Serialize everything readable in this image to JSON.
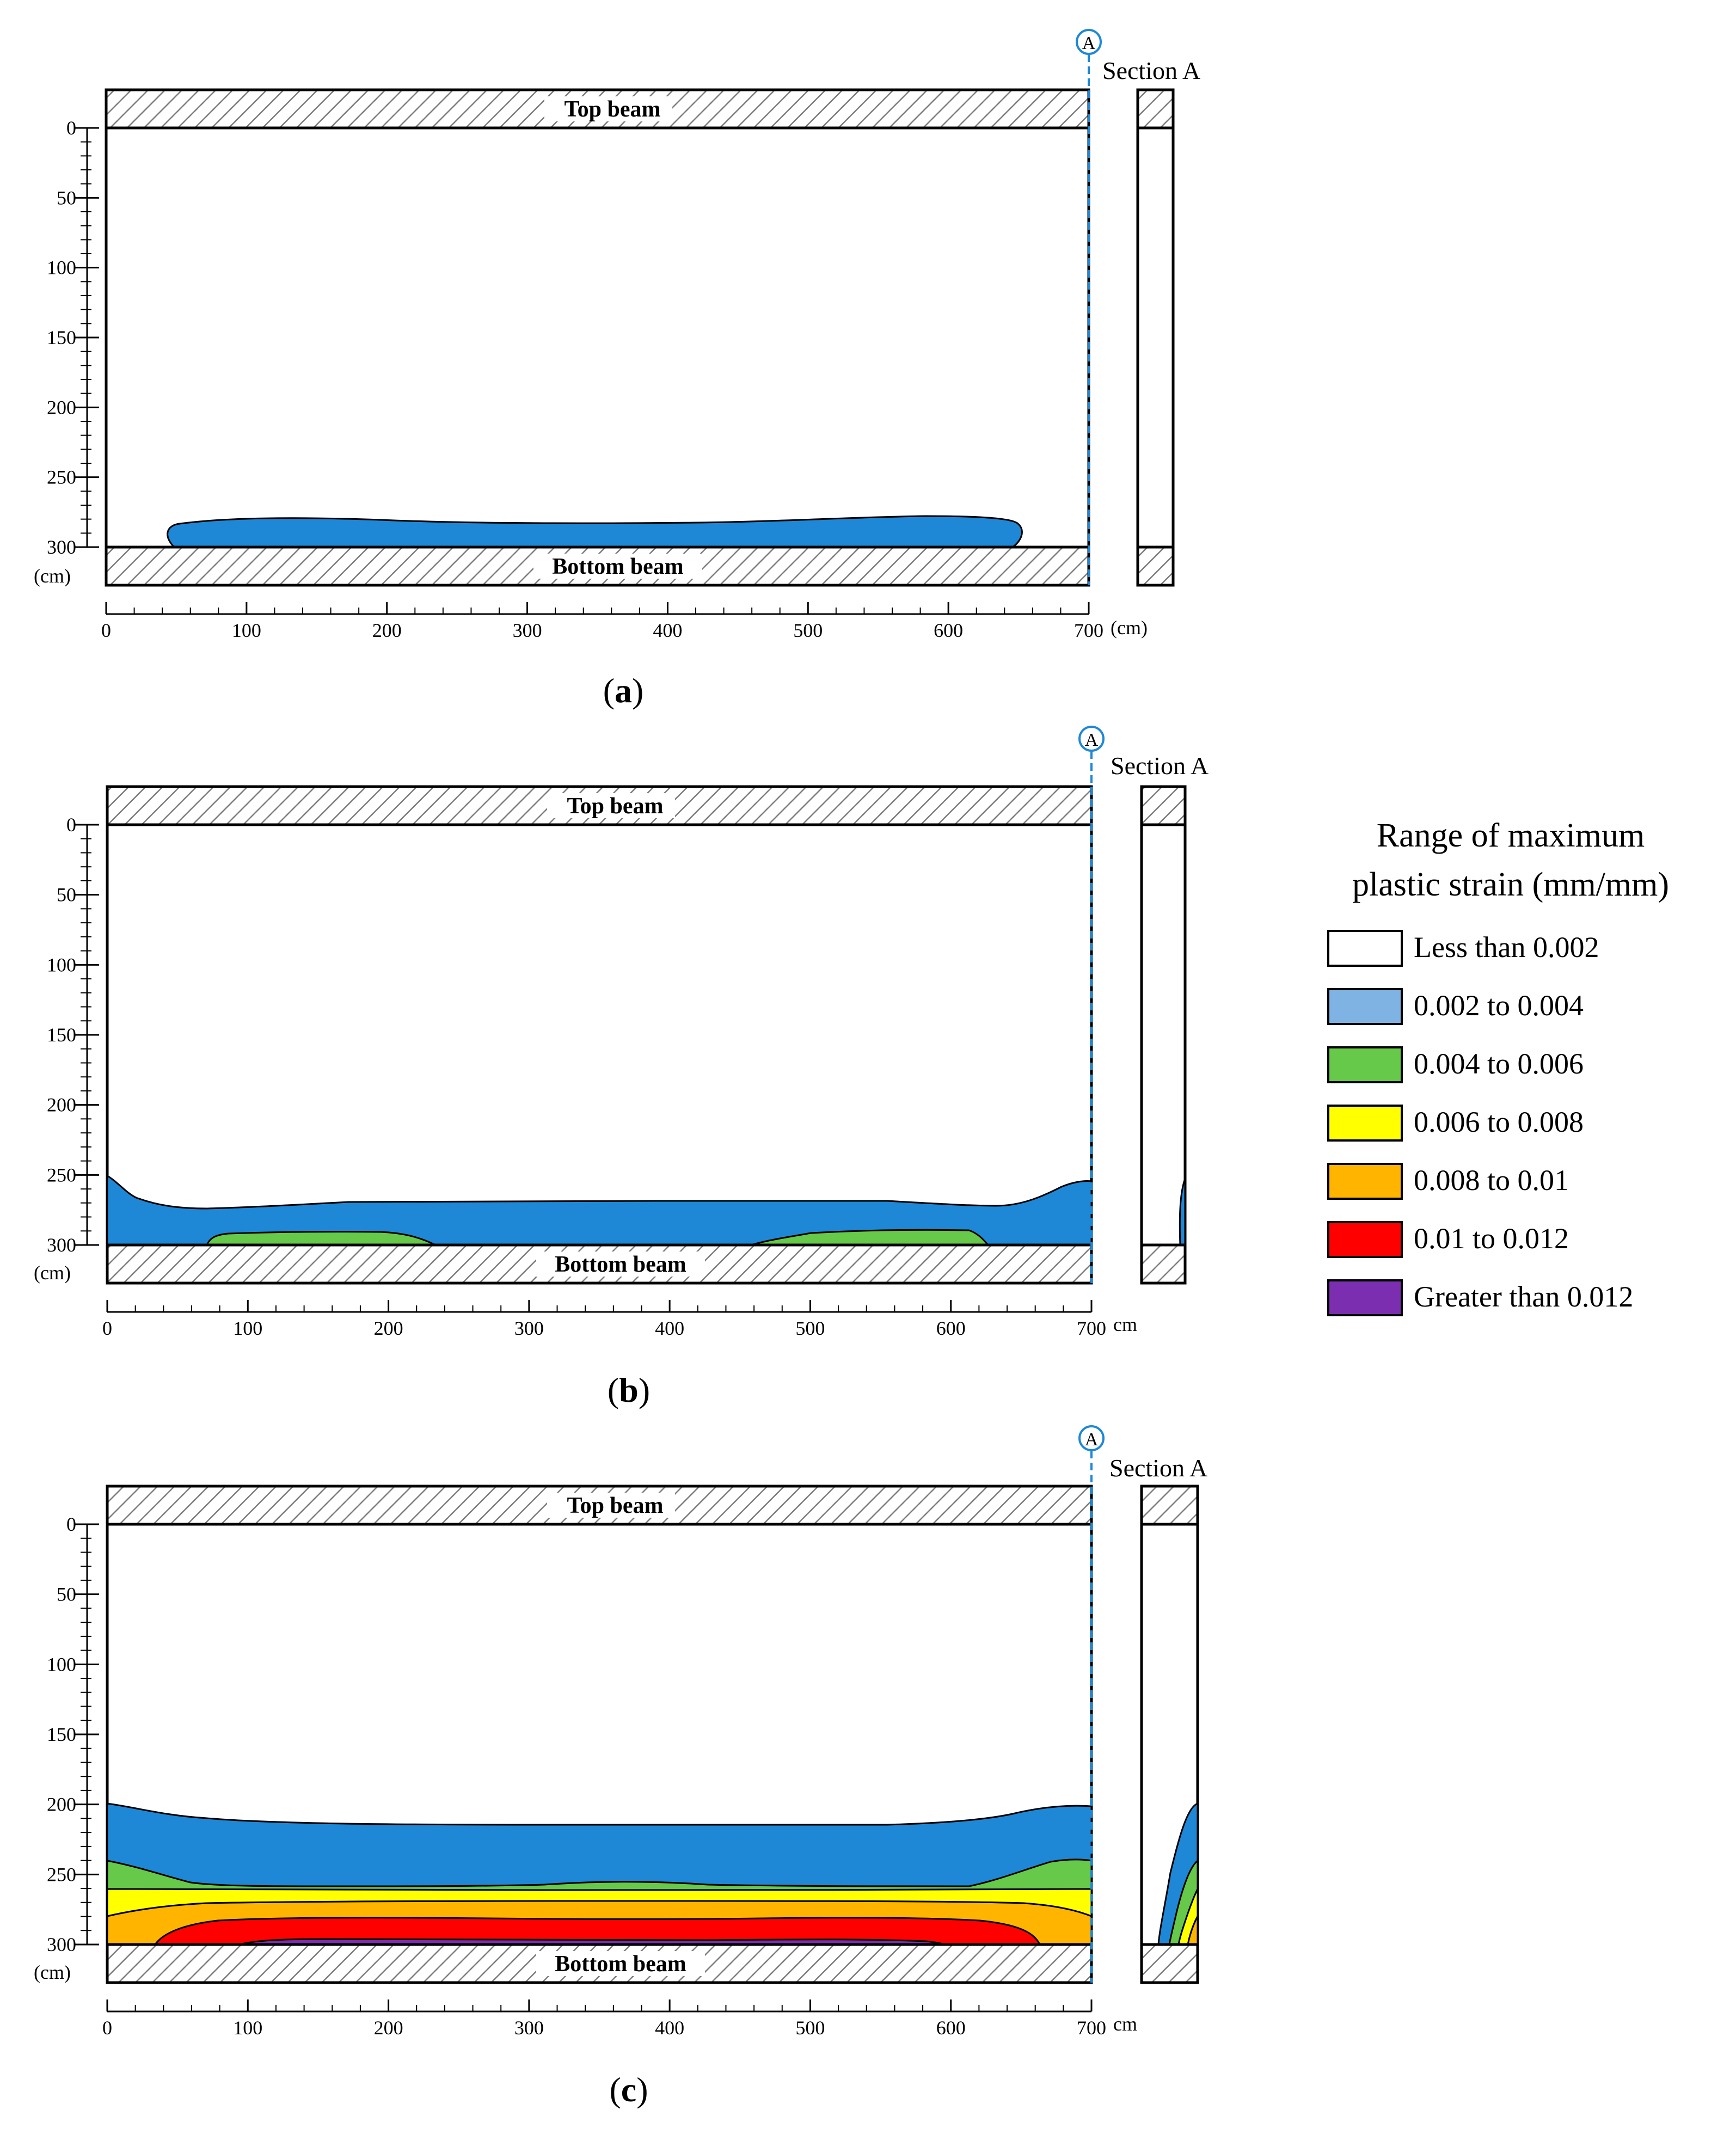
{
  "figure": {
    "panels": [
      {
        "id": "a",
        "caption_letter": "a",
        "top_beam_label": "Top beam",
        "bottom_beam_label": "Bottom beam",
        "section_marker": "A",
        "section_label": "Section A",
        "y_unit_label": "(cm)",
        "x_unit_label": "(cm)",
        "x_ticks": [
          "0",
          "100",
          "200",
          "300",
          "400",
          "500",
          "600",
          "700"
        ],
        "y_ticks": [
          "0",
          "50",
          "100",
          "150",
          "200",
          "250",
          "300"
        ]
      },
      {
        "id": "b",
        "caption_letter": "b",
        "top_beam_label": "Top beam",
        "bottom_beam_label": "Bottom beam",
        "section_marker": "A",
        "section_label": "Section A",
        "y_unit_label": "(cm)",
        "x_unit_label": "cm",
        "x_ticks": [
          "0",
          "100",
          "200",
          "300",
          "400",
          "500",
          "600",
          "700"
        ],
        "y_ticks": [
          "0",
          "50",
          "100",
          "150",
          "200",
          "250",
          "300"
        ]
      },
      {
        "id": "c",
        "caption_letter": "c",
        "top_beam_label": "Top beam",
        "bottom_beam_label": "Bottom beam",
        "section_marker": "A",
        "section_label": "Section A",
        "y_unit_label": "(cm)",
        "x_unit_label": "cm",
        "x_ticks": [
          "0",
          "100",
          "200",
          "300",
          "400",
          "500",
          "600",
          "700"
        ],
        "y_ticks": [
          "0",
          "50",
          "100",
          "150",
          "200",
          "250",
          "300"
        ]
      }
    ],
    "legend": {
      "title_line1": "Range of maximum",
      "title_line2": "plastic strain (mm/mm)",
      "items": [
        {
          "label": "Less than 0.002",
          "color": "#ffffff"
        },
        {
          "label": "0.002 to 0.004",
          "color": "#7eb3e3"
        },
        {
          "label": "0.004 to 0.006",
          "color": "#66c94a"
        },
        {
          "label": "0.006 to 0.008",
          "color": "#ffff00"
        },
        {
          "label": "0.008 to 0.01",
          "color": "#ffb400"
        },
        {
          "label": "0.01 to 0.012",
          "color": "#ff0000"
        },
        {
          "label": "Greater than 0.012",
          "color": "#7b2fb0"
        }
      ]
    },
    "colors": {
      "contour_blue": "#1e88d6",
      "contour_green": "#66c94a",
      "contour_yellow": "#ffff00",
      "contour_orange": "#ffb400",
      "contour_red": "#ff0000",
      "contour_purple": "#7b2fb0",
      "section_marker": "#1e88d6"
    }
  }
}
